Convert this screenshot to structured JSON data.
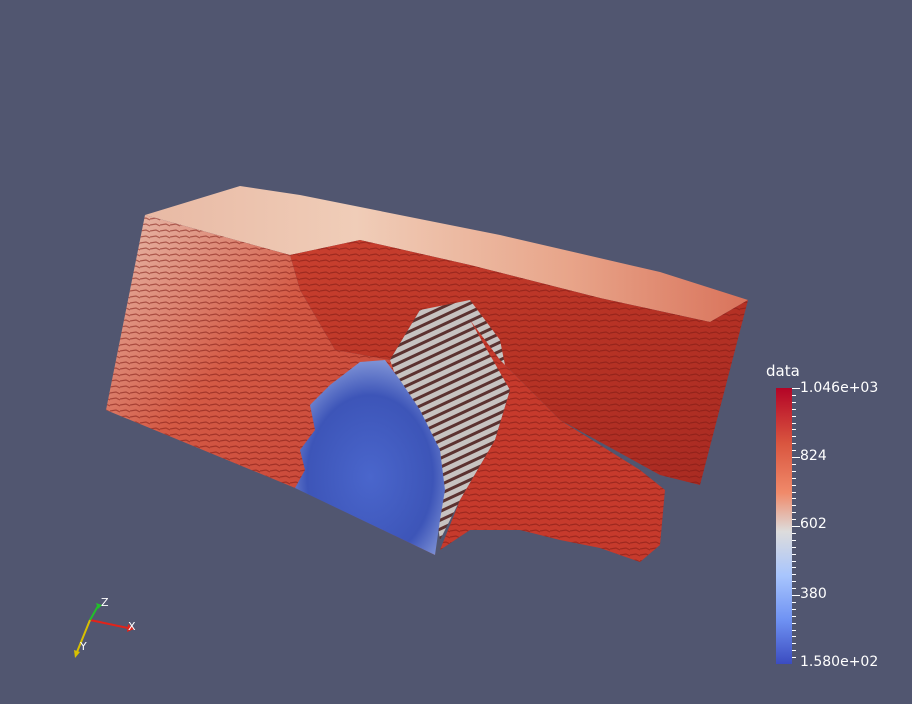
{
  "colorbar": {
    "title": "data",
    "max_label": "1.046e+03",
    "t1": "824",
    "t2": "602",
    "t3": "380",
    "min_label": "1.580e+02",
    "range": [
      158,
      1046
    ],
    "colormap": [
      "#b40426",
      "#dddcdc",
      "#3b4cc0"
    ]
  },
  "axes": {
    "x_label": "X",
    "y_label": "Y",
    "z_label": "Z",
    "x_color": "#e2231a",
    "y_color": "#d8c000",
    "z_color": "#22c02a"
  }
}
